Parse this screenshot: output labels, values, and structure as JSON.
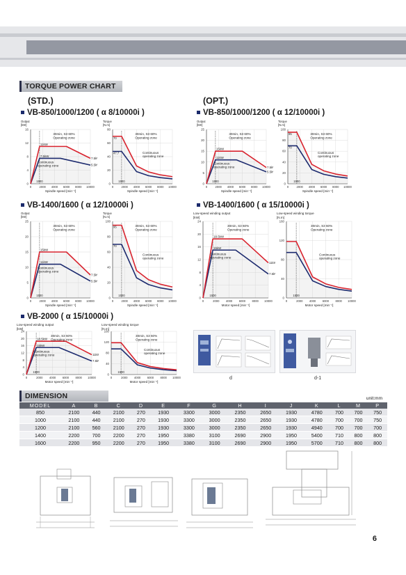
{
  "section_titles": {
    "torque": "TORQUE POWER CHART",
    "dimension": "DIMENSION"
  },
  "groups": {
    "std": "(STD.)",
    "opt": "(OPT.)"
  },
  "models": {
    "m1": "VB-850/1000/1200 ( α 8/10000i )",
    "m2": "VB-850/1000/1200 ( α 12/10000i )",
    "m3": "VB-1400/1600 ( α 12/10000i )",
    "m4": "VB-1400/1600 ( α 15/10000i )",
    "m5": "VB-2000 ( α 15/10000i )"
  },
  "axis_texts": {
    "output_kw": "Output [kW]",
    "torque_nm": "Torque [N.m]",
    "low_output": "Low-speed winding output",
    "low_torque": "Low-speed winding torque",
    "kw": "[kW]",
    "nm": "[N.m]",
    "spindle_speed": "Spindle speed [min⁻¹]",
    "motor_speed": "Motor speed [min⁻¹]"
  },
  "zone_texts": {
    "s3": "30min, S3 60%",
    "op": "Operating zone",
    "cont": "Continuous",
    "cont_op": "Continuous operating zone",
    "cont2": "Continuous operating zone"
  },
  "chart_data": [
    {
      "type": "line",
      "id": "c1",
      "ylabel": "Output [kW]",
      "xlabel": "Spindle speed [min⁻¹]",
      "ylim": [
        0,
        16
      ],
      "xlim": [
        0,
        10000
      ],
      "yticks": [
        0,
        4,
        8,
        12,
        16
      ],
      "xticks": [
        0,
        2000,
        4000,
        6000,
        8000,
        10000
      ],
      "series": [
        {
          "name": "30min, S3 60%",
          "x": [
            0,
            1500,
            6000,
            10000
          ],
          "y": [
            0,
            11,
            11,
            7.5
          ]
        },
        {
          "name": "Continuous operating zone",
          "x": [
            0,
            1500,
            5000,
            10000
          ],
          "y": [
            0,
            7.5,
            7.5,
            5.5
          ]
        }
      ],
      "annotations": [
        "11kW",
        "7.5kW",
        "7.5kW",
        "5.5kW",
        "1500"
      ]
    },
    {
      "type": "line",
      "id": "c2",
      "ylabel": "Torque [N.m]",
      "xlabel": "Spindle speed [min⁻¹]",
      "ylim": [
        0,
        80
      ],
      "xlim": [
        0,
        10000
      ],
      "yticks": [
        0,
        20,
        40,
        60,
        80
      ],
      "xticks": [
        0,
        2000,
        4000,
        6000,
        8000,
        10000
      ],
      "series": [
        {
          "name": "30min, S3 60%",
          "x": [
            0,
            1500,
            4000,
            6000,
            8000,
            10000
          ],
          "y": [
            70,
            70,
            26.3,
            17.5,
            13.1,
            10.5
          ]
        },
        {
          "name": "Continuous operating zone",
          "x": [
            0,
            1500,
            4000,
            6000,
            8000,
            10000
          ],
          "y": [
            47.7,
            47.7,
            17.9,
            11.9,
            9,
            7.2
          ]
        }
      ],
      "annotations": [
        "70",
        "47.7",
        "1500"
      ]
    },
    {
      "type": "line",
      "id": "c3",
      "ylabel": "Output [kW]",
      "xlabel": "Spindle speed [min⁻¹]",
      "ylim": [
        0,
        25
      ],
      "xlim": [
        0,
        10000
      ],
      "yticks": [
        0,
        5,
        10,
        15,
        20,
        25
      ],
      "xticks": [
        0,
        2000,
        4000,
        6000,
        8000,
        10000
      ],
      "series": [
        {
          "name": "30min, S3 60%",
          "x": [
            0,
            1500,
            6000,
            10000
          ],
          "y": [
            0,
            15,
            15,
            7.5
          ]
        },
        {
          "name": "Continuous operating zone",
          "x": [
            0,
            1500,
            5000,
            10000
          ],
          "y": [
            0,
            11,
            11,
            5.5
          ]
        }
      ],
      "annotations": [
        "15kW",
        "11kW",
        "7.5kW",
        "5.5kW",
        "1500"
      ]
    },
    {
      "type": "line",
      "id": "c4",
      "ylabel": "Torque [N.m]",
      "xlabel": "Spindle speed [min⁻¹]",
      "ylim": [
        0,
        100
      ],
      "xlim": [
        0,
        10000
      ],
      "yticks": [
        0,
        20,
        40,
        60,
        80,
        100
      ],
      "xticks": [
        0,
        2000,
        4000,
        6000,
        8000,
        10000
      ],
      "series": [
        {
          "name": "30min, S3 60%",
          "x": [
            0,
            1500,
            4000,
            6000,
            8000,
            10000
          ],
          "y": [
            95,
            95,
            35.8,
            23.9,
            17.9,
            14.3
          ]
        },
        {
          "name": "Continuous operating zone",
          "x": [
            0,
            1500,
            4000,
            6000,
            8000,
            10000
          ],
          "y": [
            70,
            70,
            26.3,
            17.5,
            13.1,
            10.5
          ]
        }
      ],
      "annotations": [
        "95",
        "70",
        "1500"
      ]
    },
    {
      "type": "line",
      "id": "c5",
      "ylabel": "Output [kW]",
      "xlabel": "Spindle speed [min⁻¹]",
      "ylim": [
        0,
        25
      ],
      "xlim": [
        0,
        10000
      ],
      "yticks": [
        0,
        5,
        10,
        15,
        20,
        25
      ],
      "xticks": [
        0,
        2000,
        4000,
        6000,
        8000,
        10000
      ],
      "series": [
        {
          "name": "30min, S3 60%",
          "x": [
            0,
            1500,
            6000,
            10000
          ],
          "y": [
            0,
            15,
            15,
            7.5
          ]
        },
        {
          "name": "Continuous operating zone",
          "x": [
            0,
            1500,
            5000,
            10000
          ],
          "y": [
            0,
            11,
            11,
            5.5
          ]
        }
      ],
      "annotations": [
        "15kW",
        "11kW",
        "7.5kW",
        "5.5kW",
        "1500"
      ]
    },
    {
      "type": "line",
      "id": "c6",
      "ylabel": "Torque [N.m]",
      "xlabel": "Spindle speed [min⁻¹]",
      "ylim": [
        0,
        100
      ],
      "xlim": [
        0,
        10000
      ],
      "yticks": [
        0,
        20,
        40,
        60,
        80,
        100
      ],
      "xticks": [
        0,
        2000,
        4000,
        6000,
        8000,
        10000
      ],
      "series": [
        {
          "name": "30min, S3 60%",
          "x": [
            0,
            1500,
            4000,
            6000,
            8000,
            10000
          ],
          "y": [
            95,
            95,
            35.8,
            23.9,
            17.9,
            14.3
          ]
        },
        {
          "name": "Continuous operating zone",
          "x": [
            0,
            1500,
            4000,
            6000,
            8000,
            10000
          ],
          "y": [
            70,
            70,
            26.3,
            17.5,
            13.1,
            10.5
          ]
        }
      ],
      "annotations": [
        "95",
        "70",
        "1500"
      ]
    },
    {
      "type": "line",
      "id": "c7",
      "ylabel": "Low-speed winding output [kW]",
      "xlabel": "Motor speed [min⁻¹]",
      "ylim": [
        0,
        24
      ],
      "xlim": [
        0,
        10000
      ],
      "yticks": [
        0,
        4,
        8,
        12,
        16,
        20,
        24
      ],
      "xticks": [
        0,
        2000,
        4000,
        6000,
        8000,
        10000
      ],
      "series": [
        {
          "name": "30min, S3 60%",
          "x": [
            0,
            1500,
            6000,
            10000
          ],
          "y": [
            0,
            18.5,
            18.5,
            11
          ]
        },
        {
          "name": "Continuous operating zone",
          "x": [
            0,
            1500,
            5000,
            10000
          ],
          "y": [
            0,
            15,
            15,
            7.5
          ]
        }
      ],
      "annotations": [
        "18.5kW",
        "15kW",
        "11kW",
        "7.5kW",
        "1500"
      ]
    },
    {
      "type": "line",
      "id": "c8",
      "ylabel": "Low-speed winding torque [N.m]",
      "xlabel": "Motor speed [min⁻¹]",
      "ylim": [
        0,
        160
      ],
      "xlim": [
        0,
        10000
      ],
      "yticks": [
        0,
        40,
        80,
        120,
        160
      ],
      "xticks": [
        0,
        2000,
        4000,
        6000,
        8000,
        10000
      ],
      "series": [
        {
          "name": "30min, S3 60%",
          "x": [
            0,
            1500,
            4000,
            6000,
            8000,
            10000
          ],
          "y": [
            118,
            118,
            44,
            29.5,
            22,
            17.7
          ]
        },
        {
          "name": "Continuous operating zone",
          "x": [
            0,
            1500,
            4000,
            6000,
            8000,
            10000
          ],
          "y": [
            95,
            95,
            35.8,
            23.9,
            17.9,
            14.3
          ]
        }
      ],
      "annotations": [
        "1500"
      ]
    },
    {
      "type": "line",
      "id": "c9",
      "ylabel": "Low-speed winding output [kW]",
      "xlabel": "Motor speed [min⁻¹]",
      "ylim": [
        0,
        24
      ],
      "xlim": [
        0,
        10000
      ],
      "yticks": [
        0,
        4,
        8,
        12,
        16,
        20,
        24
      ],
      "xticks": [
        0,
        2000,
        4000,
        6000,
        8000,
        10000
      ],
      "series": [
        {
          "name": "30min, S3 60%",
          "x": [
            0,
            1500,
            6000,
            10000
          ],
          "y": [
            0,
            18.5,
            18.5,
            11
          ]
        },
        {
          "name": "Continuous operating zone",
          "x": [
            0,
            1500,
            5000,
            10000
          ],
          "y": [
            0,
            15,
            15,
            7.5
          ]
        }
      ],
      "annotations": [
        "18.5kW",
        "15kW",
        "11kW",
        "7.5kW",
        "1500"
      ]
    },
    {
      "type": "line",
      "id": "c10",
      "ylabel": "Low-speed winding torque [N.m]",
      "xlabel": "Motor speed [min⁻¹]",
      "ylim": [
        0,
        160
      ],
      "xlim": [
        0,
        10000
      ],
      "yticks": [
        0,
        40,
        80,
        120,
        160
      ],
      "xticks": [
        0,
        2000,
        4000,
        6000,
        8000,
        10000
      ],
      "series": [
        {
          "name": "30min, S3 60%",
          "x": [
            0,
            1500,
            4000,
            6000,
            8000,
            10000
          ],
          "y": [
            118,
            118,
            44,
            29.5,
            22,
            17.7
          ]
        },
        {
          "name": "Continuous operating zone",
          "x": [
            0,
            1500,
            4000,
            6000,
            8000,
            10000
          ],
          "y": [
            95,
            95,
            35.8,
            23.9,
            17.9,
            14.3
          ]
        }
      ],
      "annotations": [
        "1500"
      ]
    }
  ],
  "photo_captions": {
    "d": "d",
    "d1": "d-1"
  },
  "dimension_table": {
    "unit": "unit:mm",
    "headers": [
      "MODEL",
      "A",
      "B",
      "C",
      "D",
      "E",
      "F",
      "G",
      "H",
      "I",
      "J",
      "K",
      "L",
      "M",
      "P"
    ],
    "rows": [
      [
        "850",
        "2100",
        "440",
        "2100",
        "270",
        "1930",
        "3300",
        "3000",
        "2350",
        "2650",
        "1930",
        "4780",
        "700",
        "700",
        "750"
      ],
      [
        "1000",
        "2100",
        "440",
        "2100",
        "270",
        "1930",
        "3300",
        "3000",
        "2350",
        "2650",
        "1930",
        "4780",
        "700",
        "700",
        "750"
      ],
      [
        "1200",
        "2100",
        "560",
        "2100",
        "270",
        "1930",
        "3300",
        "3000",
        "2350",
        "2650",
        "1930",
        "4940",
        "700",
        "700",
        "700"
      ],
      [
        "1400",
        "2200",
        "700",
        "2200",
        "270",
        "1950",
        "3380",
        "3100",
        "2690",
        "2900",
        "1950",
        "5400",
        "710",
        "800",
        "800"
      ],
      [
        "1600",
        "2200",
        "950",
        "2200",
        "270",
        "1950",
        "3380",
        "3100",
        "2690",
        "2900",
        "1950",
        "5700",
        "710",
        "800",
        "800"
      ]
    ]
  },
  "page_number": "6",
  "colors": {
    "red": "#d9232e",
    "blue": "#1c2a6e",
    "header": "#5f636d"
  }
}
